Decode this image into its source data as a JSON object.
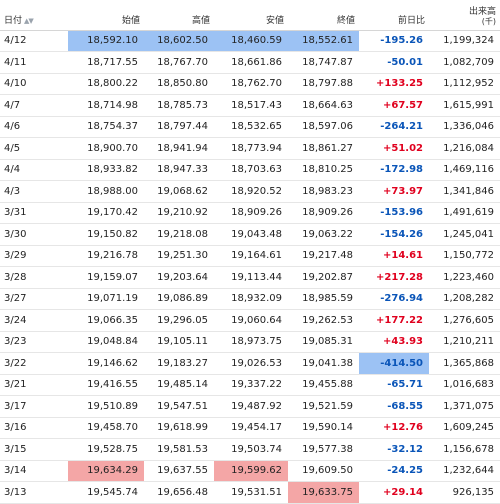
{
  "headers": {
    "date": "日付",
    "open": "始値",
    "high": "高値",
    "low": "安値",
    "close": "終値",
    "change": "前日比",
    "volume": "出来高",
    "volume_unit": "(千)"
  },
  "highlight_colors": {
    "blue": "#9cc2f4",
    "red": "#f4a6a6",
    "up_text": "#e0001e",
    "down_text": "#0a55b8"
  },
  "rows": [
    {
      "date": "4/12",
      "open": "18,592.10",
      "high": "18,602.50",
      "low": "18,460.59",
      "close": "18,552.61",
      "change": "-195.26",
      "volume": "1,199,324",
      "dir": "down",
      "hl": {
        "open": "blue",
        "high": "blue",
        "low": "blue",
        "close": "blue"
      }
    },
    {
      "date": "4/11",
      "open": "18,717.55",
      "high": "18,767.70",
      "low": "18,661.86",
      "close": "18,747.87",
      "change": "-50.01",
      "volume": "1,082,709",
      "dir": "down",
      "hl": {}
    },
    {
      "date": "4/10",
      "open": "18,800.22",
      "high": "18,850.80",
      "low": "18,762.70",
      "close": "18,797.88",
      "change": "+133.25",
      "volume": "1,112,952",
      "dir": "up",
      "hl": {}
    },
    {
      "date": "4/7",
      "open": "18,714.98",
      "high": "18,785.73",
      "low": "18,517.43",
      "close": "18,664.63",
      "change": "+67.57",
      "volume": "1,615,991",
      "dir": "up",
      "hl": {}
    },
    {
      "date": "4/6",
      "open": "18,754.37",
      "high": "18,797.44",
      "low": "18,532.65",
      "close": "18,597.06",
      "change": "-264.21",
      "volume": "1,336,046",
      "dir": "down",
      "hl": {}
    },
    {
      "date": "4/5",
      "open": "18,900.70",
      "high": "18,941.94",
      "low": "18,773.94",
      "close": "18,861.27",
      "change": "+51.02",
      "volume": "1,216,084",
      "dir": "up",
      "hl": {}
    },
    {
      "date": "4/4",
      "open": "18,933.82",
      "high": "18,947.33",
      "low": "18,703.63",
      "close": "18,810.25",
      "change": "-172.98",
      "volume": "1,469,116",
      "dir": "down",
      "hl": {}
    },
    {
      "date": "4/3",
      "open": "18,988.00",
      "high": "19,068.62",
      "low": "18,920.52",
      "close": "18,983.23",
      "change": "+73.97",
      "volume": "1,341,846",
      "dir": "up",
      "hl": {}
    },
    {
      "date": "3/31",
      "open": "19,170.42",
      "high": "19,210.92",
      "low": "18,909.26",
      "close": "18,909.26",
      "change": "-153.96",
      "volume": "1,491,619",
      "dir": "down",
      "hl": {}
    },
    {
      "date": "3/30",
      "open": "19,150.82",
      "high": "19,218.08",
      "low": "19,043.48",
      "close": "19,063.22",
      "change": "-154.26",
      "volume": "1,245,041",
      "dir": "down",
      "hl": {}
    },
    {
      "date": "3/29",
      "open": "19,216.78",
      "high": "19,251.30",
      "low": "19,164.61",
      "close": "19,217.48",
      "change": "+14.61",
      "volume": "1,150,772",
      "dir": "up",
      "hl": {}
    },
    {
      "date": "3/28",
      "open": "19,159.07",
      "high": "19,203.64",
      "low": "19,113.44",
      "close": "19,202.87",
      "change": "+217.28",
      "volume": "1,223,460",
      "dir": "up",
      "hl": {}
    },
    {
      "date": "3/27",
      "open": "19,071.19",
      "high": "19,086.89",
      "low": "18,932.09",
      "close": "18,985.59",
      "change": "-276.94",
      "volume": "1,208,282",
      "dir": "down",
      "hl": {}
    },
    {
      "date": "3/24",
      "open": "19,066.35",
      "high": "19,296.05",
      "low": "19,060.64",
      "close": "19,262.53",
      "change": "+177.22",
      "volume": "1,276,605",
      "dir": "up",
      "hl": {}
    },
    {
      "date": "3/23",
      "open": "19,048.84",
      "high": "19,105.11",
      "low": "18,973.75",
      "close": "19,085.31",
      "change": "+43.93",
      "volume": "1,210,211",
      "dir": "up",
      "hl": {}
    },
    {
      "date": "3/22",
      "open": "19,146.62",
      "high": "19,183.27",
      "low": "19,026.53",
      "close": "19,041.38",
      "change": "-414.50",
      "volume": "1,365,868",
      "dir": "down",
      "hl": {
        "change": "blue"
      }
    },
    {
      "date": "3/21",
      "open": "19,416.55",
      "high": "19,485.14",
      "low": "19,337.22",
      "close": "19,455.88",
      "change": "-65.71",
      "volume": "1,016,683",
      "dir": "down",
      "hl": {}
    },
    {
      "date": "3/17",
      "open": "19,510.89",
      "high": "19,547.51",
      "low": "19,487.92",
      "close": "19,521.59",
      "change": "-68.55",
      "volume": "1,371,075",
      "dir": "down",
      "hl": {}
    },
    {
      "date": "3/16",
      "open": "19,458.70",
      "high": "19,618.99",
      "low": "19,454.17",
      "close": "19,590.14",
      "change": "+12.76",
      "volume": "1,609,245",
      "dir": "up",
      "hl": {}
    },
    {
      "date": "3/15",
      "open": "19,528.75",
      "high": "19,581.53",
      "low": "19,503.74",
      "close": "19,577.38",
      "change": "-32.12",
      "volume": "1,156,678",
      "dir": "down",
      "hl": {}
    },
    {
      "date": "3/14",
      "open": "19,634.29",
      "high": "19,637.55",
      "low": "19,599.62",
      "close": "19,609.50",
      "change": "-24.25",
      "volume": "1,232,644",
      "dir": "down",
      "hl": {
        "open": "red",
        "low": "red"
      }
    },
    {
      "date": "3/13",
      "open": "19,545.74",
      "high": "19,656.48",
      "low": "19,531.51",
      "close": "19,633.75",
      "change": "+29.14",
      "volume": "926,135",
      "dir": "up",
      "hl": {
        "close": "red"
      }
    }
  ]
}
